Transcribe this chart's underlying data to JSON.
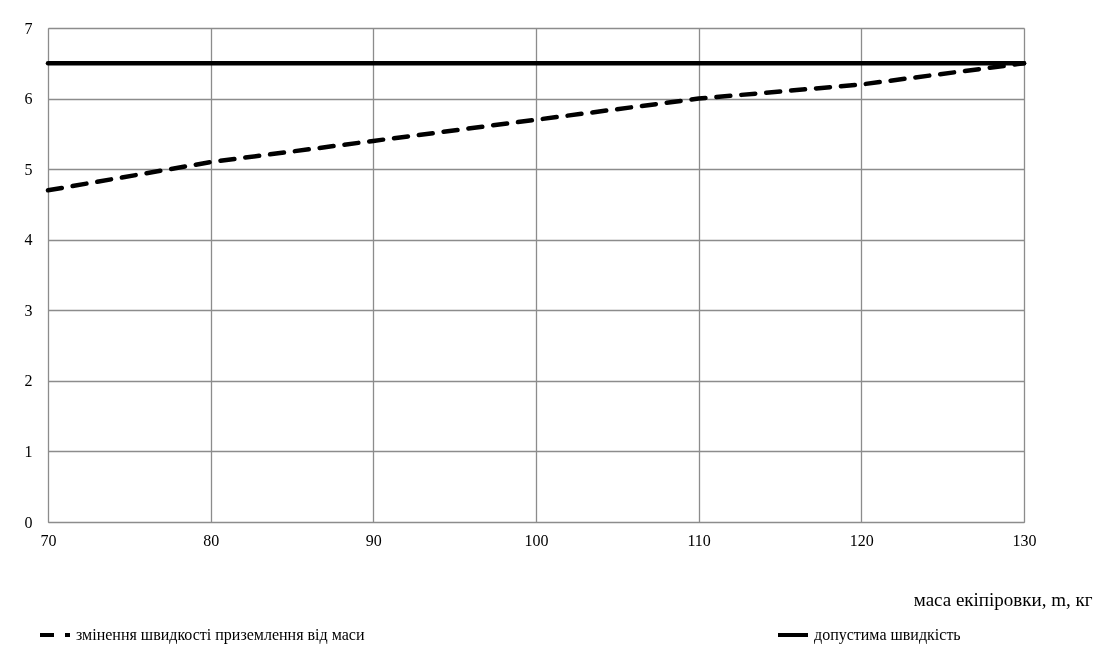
{
  "chart_data": {
    "type": "line",
    "xlabel": "маса екіпіровки, m, кг",
    "x": [
      70,
      80,
      90,
      100,
      110,
      120,
      130
    ],
    "series": [
      {
        "name": "змінення швидкості приземлення від маси",
        "color": "#000000",
        "line_style": "dashed",
        "values": [
          4.7,
          5.1,
          5.4,
          5.7,
          6.0,
          6.2,
          6.5
        ]
      },
      {
        "name": "допустима швидкість",
        "color": "#000000",
        "line_style": "solid",
        "values": [
          6.5,
          6.5,
          6.5,
          6.5,
          6.5,
          6.5,
          6.5
        ]
      }
    ],
    "xlim": [
      70,
      130
    ],
    "xticks": [
      70,
      80,
      90,
      100,
      110,
      120,
      130
    ],
    "ylim": [
      0,
      7
    ],
    "yticks": [
      0,
      1,
      2,
      3,
      4,
      5,
      6,
      7
    ],
    "grid": true,
    "legend": "bottom"
  }
}
